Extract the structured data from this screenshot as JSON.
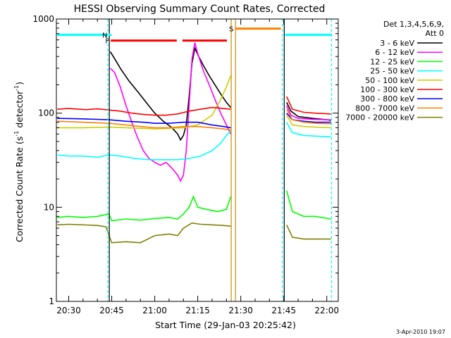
{
  "chart_data": {
    "type": "line",
    "title": "HESSI Observing Summary Count Rates, Corrected",
    "xlabel": "Start Time (29-Jan-03 20:25:42)",
    "ylabel": "Corrected Count Rate (s⁻¹ detector⁻¹)",
    "ylabel_main": "Corrected Count Rate (s",
    "ylabel_sup1": "-1",
    "ylabel_mid": " detector",
    "ylabel_sup2": "-1",
    "ylabel_end": ")",
    "y_scale": "log",
    "ylim": [
      1,
      1000
    ],
    "xlim": [
      "20:25:42",
      "22:04:00"
    ],
    "x_ticks": [
      "20:30",
      "20:45",
      "21:00",
      "21:15",
      "21:30",
      "21:45",
      "22:00"
    ],
    "y_ticks": [
      "1",
      "10",
      "100",
      "1000"
    ],
    "legend_placement": "right",
    "legend_header": [
      "Det 1,3,4,5,6,9,",
      "Att 0"
    ],
    "footer": "3-Apr-2010 19:07",
    "series": [
      {
        "name": "3 - 6 keV",
        "color": "#000000",
        "points": [
          [
            "20:44:30",
            450
          ],
          [
            "20:46:00",
            380
          ],
          [
            "20:48:00",
            300
          ],
          [
            "20:51:00",
            220
          ],
          [
            "20:54:00",
            170
          ],
          [
            "20:57:00",
            130
          ],
          [
            "21:00:00",
            100
          ],
          [
            "21:03:00",
            82
          ],
          [
            "21:06:00",
            70
          ],
          [
            "21:08:00",
            60
          ],
          [
            "21:09:00",
            52
          ],
          [
            "21:10:00",
            58
          ],
          [
            "21:11:00",
            75
          ],
          [
            "21:12:00",
            150
          ],
          [
            "21:13:00",
            340
          ],
          [
            "21:14:00",
            490
          ],
          [
            "21:15:00",
            420
          ],
          [
            "21:17:00",
            320
          ],
          [
            "21:19:00",
            250
          ],
          [
            "21:21:00",
            200
          ],
          [
            "21:23:00",
            160
          ],
          [
            "21:25:00",
            130
          ],
          [
            "21:26:30",
            115
          ],
          [
            "21:46:00",
            130
          ],
          [
            "21:47:30",
            105
          ],
          [
            "21:50:00",
            92
          ],
          [
            "21:55:00",
            88
          ],
          [
            "22:00:00",
            85
          ],
          [
            "22:01:30",
            84
          ]
        ]
      },
      {
        "name": "6 - 12 keV",
        "color": "#ff00ff",
        "points": [
          [
            "20:44:30",
            300
          ],
          [
            "20:46:00",
            270
          ],
          [
            "20:48:00",
            190
          ],
          [
            "20:50:00",
            120
          ],
          [
            "20:52:00",
            80
          ],
          [
            "20:54:00",
            55
          ],
          [
            "20:56:00",
            40
          ],
          [
            "20:58:00",
            33
          ],
          [
            "21:00:00",
            30
          ],
          [
            "21:02:00",
            28
          ],
          [
            "21:04:00",
            30
          ],
          [
            "21:06:00",
            26
          ],
          [
            "21:08:00",
            22
          ],
          [
            "21:09:00",
            19
          ],
          [
            "21:10:00",
            22
          ],
          [
            "21:11:00",
            40
          ],
          [
            "21:12:00",
            120
          ],
          [
            "21:13:00",
            380
          ],
          [
            "21:14:00",
            560
          ],
          [
            "21:15:00",
            430
          ],
          [
            "21:17:00",
            280
          ],
          [
            "21:19:00",
            200
          ],
          [
            "21:21:00",
            140
          ],
          [
            "21:23:00",
            100
          ],
          [
            "21:25:00",
            75
          ],
          [
            "21:26:30",
            60
          ],
          [
            "21:46:00",
            120
          ],
          [
            "21:47:30",
            95
          ],
          [
            "21:50:00",
            88
          ],
          [
            "21:55:00",
            86
          ],
          [
            "22:00:00",
            85
          ],
          [
            "22:01:30",
            85
          ]
        ]
      },
      {
        "name": "12 - 25 keV",
        "color": "#00ff00",
        "points": [
          [
            "20:26:00",
            7.8
          ],
          [
            "20:30:00",
            8
          ],
          [
            "20:35:00",
            7.8
          ],
          [
            "20:40:00",
            8
          ],
          [
            "20:44:00",
            8.5
          ],
          [
            "20:45:00",
            7.2
          ],
          [
            "20:50:00",
            7.5
          ],
          [
            "20:55:00",
            7.3
          ],
          [
            "21:00:00",
            7.6
          ],
          [
            "21:05:00",
            7.8
          ],
          [
            "21:08:00",
            7.5
          ],
          [
            "21:10:00",
            8.5
          ],
          [
            "21:12:00",
            10
          ],
          [
            "21:13:30",
            13
          ],
          [
            "21:15:00",
            10
          ],
          [
            "21:18:00",
            9.5
          ],
          [
            "21:22:00",
            9
          ],
          [
            "21:25:00",
            9.5
          ],
          [
            "21:26:30",
            13
          ],
          [
            "21:46:00",
            15
          ],
          [
            "21:48:00",
            9
          ],
          [
            "21:52:00",
            8
          ],
          [
            "21:56:00",
            8
          ],
          [
            "22:01:30",
            7.5
          ]
        ]
      },
      {
        "name": "25 - 50 keV",
        "color": "#00ffff",
        "points": [
          [
            "20:26:00",
            36
          ],
          [
            "20:30:00",
            35
          ],
          [
            "20:35:00",
            35
          ],
          [
            "20:40:00",
            34
          ],
          [
            "20:44:00",
            36
          ],
          [
            "20:48:00",
            35
          ],
          [
            "20:53:00",
            33
          ],
          [
            "20:58:00",
            32
          ],
          [
            "21:03:00",
            32
          ],
          [
            "21:08:00",
            32
          ],
          [
            "21:12:00",
            33
          ],
          [
            "21:16:00",
            35
          ],
          [
            "21:20:00",
            40
          ],
          [
            "21:23:00",
            48
          ],
          [
            "21:25:00",
            58
          ],
          [
            "21:26:30",
            65
          ],
          [
            "21:46:00",
            80
          ],
          [
            "21:48:00",
            62
          ],
          [
            "21:52:00",
            58
          ],
          [
            "21:56:00",
            57
          ],
          [
            "22:01:30",
            56
          ]
        ]
      },
      {
        "name": "50 - 100 keV",
        "color": "#cccc00",
        "points": [
          [
            "20:26:00",
            70
          ],
          [
            "20:35:00",
            70
          ],
          [
            "20:44:00",
            71
          ],
          [
            "20:50:00",
            70
          ],
          [
            "20:55:00",
            69
          ],
          [
            "21:00:00",
            68
          ],
          [
            "21:05:00",
            69
          ],
          [
            "21:10:00",
            70
          ],
          [
            "21:15:00",
            75
          ],
          [
            "21:20:00",
            95
          ],
          [
            "21:23:00",
            140
          ],
          [
            "21:25:00",
            190
          ],
          [
            "21:26:30",
            250
          ],
          [
            "21:46:00",
            95
          ],
          [
            "21:48:00",
            75
          ],
          [
            "21:52:00",
            72
          ],
          [
            "21:56:00",
            71
          ],
          [
            "22:01:30",
            70
          ]
        ]
      },
      {
        "name": "100 - 300 keV",
        "color": "#ff0000",
        "points": [
          [
            "20:26:00",
            110
          ],
          [
            "20:30:00",
            112
          ],
          [
            "20:36:00",
            109
          ],
          [
            "20:40:00",
            111
          ],
          [
            "20:44:00",
            108
          ],
          [
            "20:48:00",
            105
          ],
          [
            "20:52:00",
            100
          ],
          [
            "20:56:00",
            97
          ],
          [
            "21:00:00",
            95
          ],
          [
            "21:04:00",
            95
          ],
          [
            "21:08:00",
            98
          ],
          [
            "21:12:00",
            105
          ],
          [
            "21:16:00",
            110
          ],
          [
            "21:20:00",
            115
          ],
          [
            "21:24:00",
            112
          ],
          [
            "21:26:30",
            110
          ],
          [
            "21:46:00",
            150
          ],
          [
            "21:48:00",
            110
          ],
          [
            "21:52:00",
            102
          ],
          [
            "21:56:00",
            100
          ],
          [
            "22:01:30",
            98
          ]
        ]
      },
      {
        "name": "300 - 800 keV",
        "color": "#0000ff",
        "points": [
          [
            "20:26:00",
            88
          ],
          [
            "20:35:00",
            87
          ],
          [
            "20:44:00",
            85
          ],
          [
            "20:50:00",
            82
          ],
          [
            "20:56:00",
            80
          ],
          [
            "21:00:00",
            78
          ],
          [
            "21:05:00",
            78
          ],
          [
            "21:10:00",
            80
          ],
          [
            "21:15:00",
            80
          ],
          [
            "21:20:00",
            75
          ],
          [
            "21:24:00",
            72
          ],
          [
            "21:26:30",
            70
          ],
          [
            "21:46:00",
            100
          ],
          [
            "21:48:00",
            85
          ],
          [
            "21:52:00",
            82
          ],
          [
            "21:56:00",
            80
          ],
          [
            "22:01:30",
            80
          ]
        ]
      },
      {
        "name": "800 - 7000 keV",
        "color": "#ff8000",
        "points": [
          [
            "20:26:00",
            82
          ],
          [
            "20:35:00",
            80
          ],
          [
            "20:44:00",
            78
          ],
          [
            "20:50:00",
            75
          ],
          [
            "20:55:00",
            72
          ],
          [
            "21:00:00",
            70
          ],
          [
            "21:05:00",
            70
          ],
          [
            "21:10:00",
            72
          ],
          [
            "21:15:00",
            72
          ],
          [
            "21:20:00",
            70
          ],
          [
            "21:24:00",
            68
          ],
          [
            "21:26:30",
            66
          ],
          [
            "21:46:00",
            110
          ],
          [
            "21:48:00",
            85
          ],
          [
            "21:52:00",
            80
          ],
          [
            "21:56:00",
            78
          ],
          [
            "22:01:30",
            77
          ]
        ]
      },
      {
        "name": "7000 - 20000 keV",
        "color": "#808000",
        "points": [
          [
            "20:26:00",
            6.5
          ],
          [
            "20:30:00",
            6.6
          ],
          [
            "20:35:00",
            6.5
          ],
          [
            "20:40:00",
            6.4
          ],
          [
            "20:43:00",
            6.2
          ],
          [
            "20:45:00",
            4.2
          ],
          [
            "20:50:00",
            4.3
          ],
          [
            "20:55:00",
            4.2
          ],
          [
            "21:00:00",
            5
          ],
          [
            "21:05:00",
            5.2
          ],
          [
            "21:08:00",
            5
          ],
          [
            "21:10:00",
            6
          ],
          [
            "21:13:00",
            6.8
          ],
          [
            "21:16:00",
            6.6
          ],
          [
            "21:20:00",
            6.5
          ],
          [
            "21:24:00",
            6.4
          ],
          [
            "21:26:30",
            6.3
          ],
          [
            "21:46:00",
            6.5
          ],
          [
            "21:48:00",
            4.8
          ],
          [
            "21:52:00",
            4.6
          ],
          [
            "21:56:00",
            4.6
          ],
          [
            "22:01:30",
            4.6
          ]
        ]
      }
    ],
    "flag_bars": [
      {
        "label": "",
        "color": "#00ffff",
        "start": "20:26:00",
        "end": "20:43:30",
        "level": 680
      },
      {
        "label": "N",
        "color": "#00ffff",
        "start": "20:44:00",
        "end": "20:45:00",
        "level": 680
      },
      {
        "label": "F",
        "color": "#ff0000",
        "start": "20:44:40",
        "end": "21:07:40",
        "level": 590
      },
      {
        "label": "",
        "color": "#ff0000",
        "start": "21:09:40",
        "end": "21:25:10",
        "level": 590
      },
      {
        "label": "S",
        "color": "#ff8000",
        "start": "21:28:00",
        "end": "21:44:00",
        "level": 790
      },
      {
        "label": "",
        "color": "#00ffff",
        "start": "21:45:30",
        "end": "22:01:30",
        "level": 680
      }
    ],
    "vertical_lines": [
      {
        "time": "20:43:40",
        "color": "#00ffff",
        "style": "dashed"
      },
      {
        "time": "20:44:10",
        "color": "#000000",
        "style": "solid"
      },
      {
        "time": "21:26:40",
        "color": "#cc8800",
        "style": "solid"
      },
      {
        "time": "21:28:10",
        "color": "#cc8800",
        "style": "solid"
      },
      {
        "time": "21:44:30",
        "color": "#00ffff",
        "style": "dashed"
      },
      {
        "time": "21:45:10",
        "color": "#000000",
        "style": "solid"
      },
      {
        "time": "22:01:40",
        "color": "#00ffff",
        "style": "dashed"
      }
    ]
  }
}
